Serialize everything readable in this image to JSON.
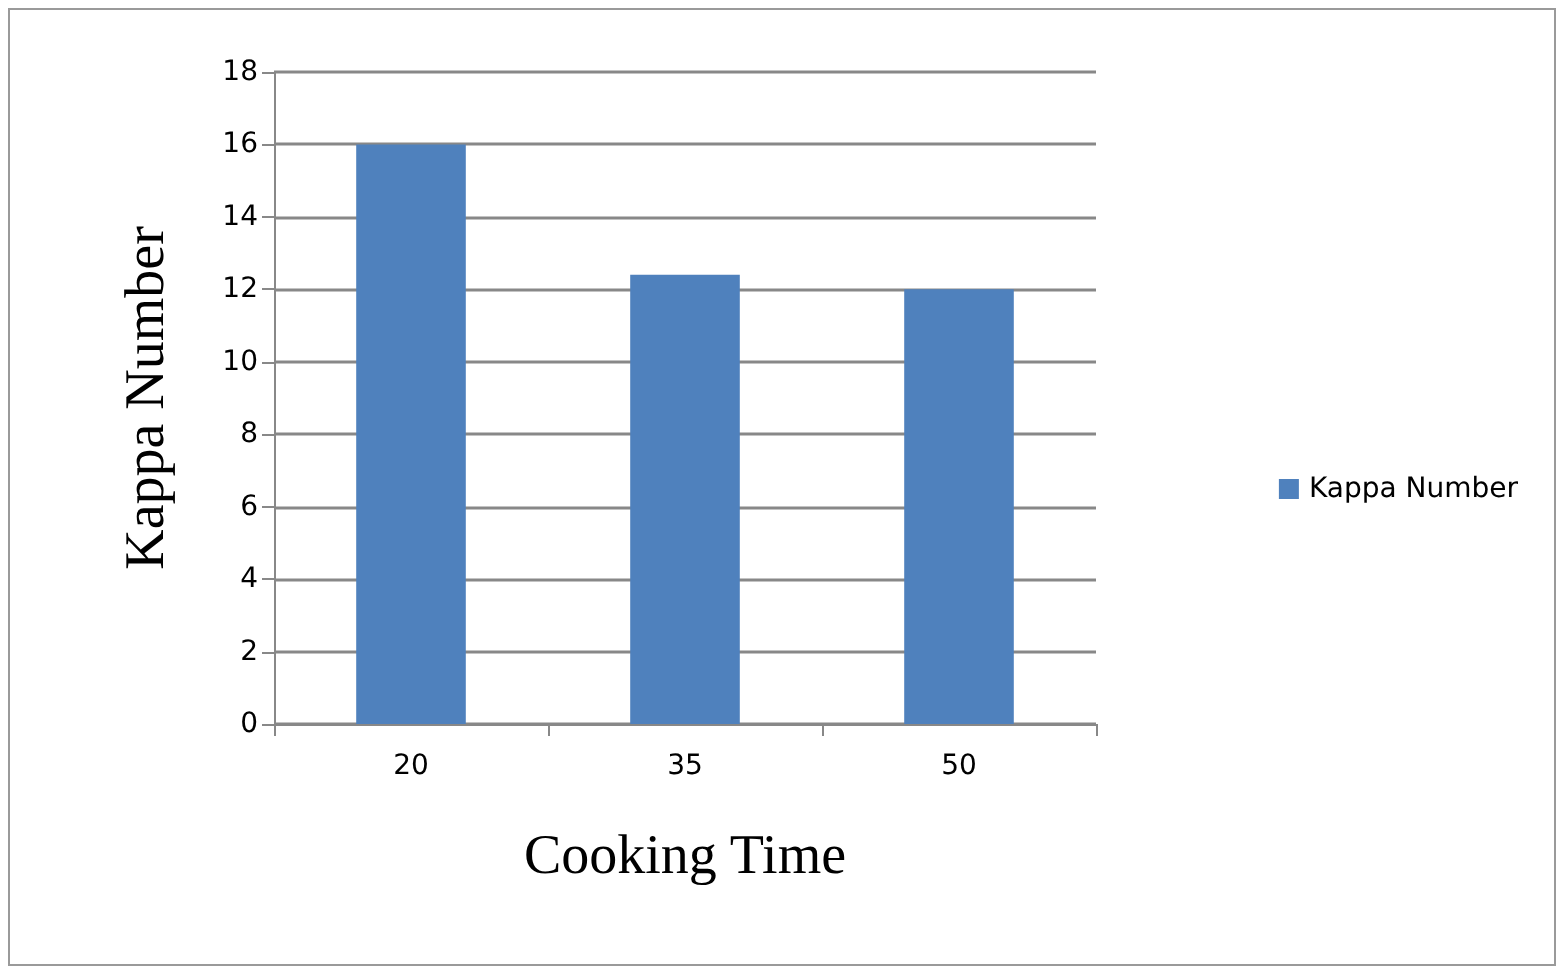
{
  "chart_data": {
    "type": "bar",
    "xlabel": "Cooking Time",
    "ylabel": "Kappa Number",
    "categories": [
      "20",
      "35",
      "50"
    ],
    "series": [
      {
        "name": "Kappa Number",
        "color": "#4f81bd",
        "values": [
          16,
          12.4,
          12
        ]
      }
    ],
    "ylim": [
      0,
      18
    ],
    "yticks": [
      0,
      2,
      4,
      6,
      8,
      10,
      12,
      14,
      16,
      18
    ],
    "grid": "y",
    "legend": "right"
  }
}
